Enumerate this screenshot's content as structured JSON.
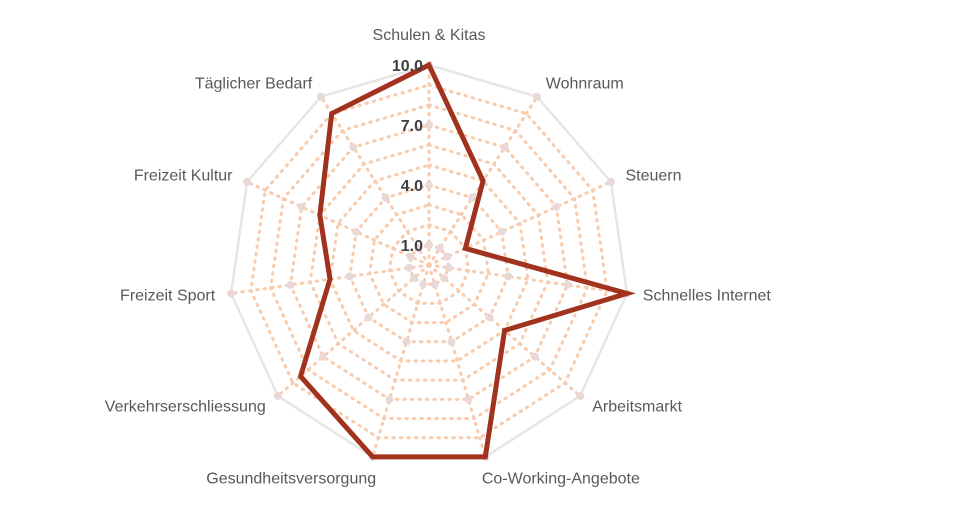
{
  "chart_data": {
    "type": "radar",
    "categories": [
      "Schulen & Kitas",
      "Wohnraum",
      "Steuern",
      "Schnelles Internet",
      "Arbeitsmarkt",
      "Co-Working-Angebote",
      "Gesundheitsversorgung",
      "Verkehrserschliessung",
      "Freizeit Sport",
      "Freizeit Kultur",
      "Täglicher Bedarf"
    ],
    "values": [
      10.0,
      5.0,
      2.0,
      10.0,
      5.0,
      10.0,
      10.0,
      8.5,
      5.0,
      6.0,
      9.0
    ],
    "range": [
      0,
      10
    ],
    "ticks": [
      {
        "value": 1,
        "label": "1.0"
      },
      {
        "value": 4,
        "label": "4.0"
      },
      {
        "value": 7,
        "label": "7.0"
      },
      {
        "value": 10,
        "label": "10.0"
      }
    ],
    "colors": {
      "series": "#a0321e",
      "outer_grid": "#e6e6e6",
      "inner_grid": "#f8cbad",
      "marker": "#ead8d8"
    }
  }
}
